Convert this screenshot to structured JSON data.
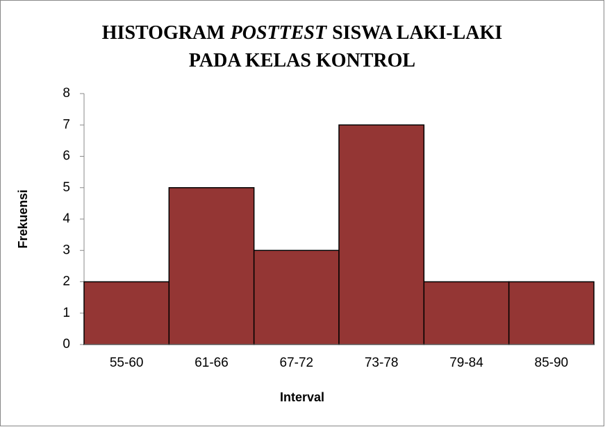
{
  "chart_data": {
    "type": "bar",
    "title": {
      "lines": [
        [
          {
            "text": "HISTOGRAM"
          },
          {
            "text": "POSTTEST",
            "italic": true
          },
          {
            "text": "SISWA LAKI-LAKI"
          }
        ],
        [
          {
            "text": "PADA KELAS KONTROL"
          }
        ]
      ]
    },
    "x_label": "Interval",
    "y_label": "Frekuensi",
    "categories": [
      "55-60",
      "61-66",
      "67-72",
      "73-78",
      "79-84",
      "85-90"
    ],
    "values": [
      2,
      5,
      3,
      7,
      2,
      2
    ],
    "color": "#943634",
    "ylim": [
      0,
      8
    ],
    "yticks": [
      0,
      1,
      2,
      3,
      4,
      5,
      6,
      7,
      8
    ],
    "grid": false
  }
}
